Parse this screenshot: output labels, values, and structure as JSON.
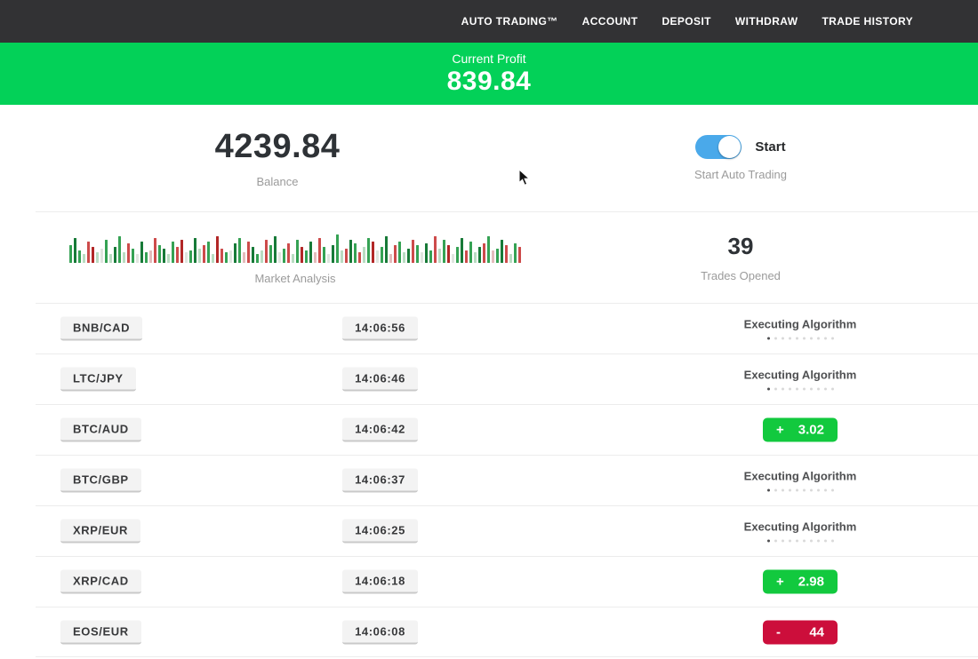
{
  "nav": {
    "items": [
      "AUTO TRADING™",
      "ACCOUNT",
      "DEPOSIT",
      "WITHDRAW",
      "TRADE HISTORY"
    ]
  },
  "profit_banner": {
    "label": "Current Profit",
    "value": "839.84"
  },
  "account": {
    "balance": "4239.84",
    "balance_label": "Balance",
    "toggle_label": "Start",
    "toggle_caption": "Start Auto Trading",
    "toggle_on": true
  },
  "market": {
    "label": "Market Analysis",
    "trades_opened": "39",
    "trades_opened_label": "Trades Opened",
    "bar_colors": {
      "g": "#35a254",
      "G": "#177a38",
      "r": "#cd4b4b",
      "R": "#b22727",
      "lg": "#b9dcc2",
      "lr": "#e3bcbc",
      "w": "#dfe5df"
    },
    "bars": [
      [
        "g",
        20
      ],
      [
        "G",
        28
      ],
      [
        "g",
        14
      ],
      [
        "lg",
        10
      ],
      [
        "r",
        24
      ],
      [
        "R",
        18
      ],
      [
        "lg",
        12
      ],
      [
        "w",
        16
      ],
      [
        "g",
        26
      ],
      [
        "lg",
        10
      ],
      [
        "G",
        18
      ],
      [
        "g",
        30
      ],
      [
        "lg",
        12
      ],
      [
        "r",
        22
      ],
      [
        "g",
        16
      ],
      [
        "w",
        10
      ],
      [
        "G",
        24
      ],
      [
        "g",
        12
      ],
      [
        "lr",
        14
      ],
      [
        "r",
        28
      ],
      [
        "g",
        20
      ],
      [
        "G",
        16
      ],
      [
        "lg",
        10
      ],
      [
        "g",
        24
      ],
      [
        "r",
        18
      ],
      [
        "R",
        26
      ],
      [
        "w",
        12
      ],
      [
        "g",
        14
      ],
      [
        "G",
        28
      ],
      [
        "lg",
        16
      ],
      [
        "r",
        20
      ],
      [
        "g",
        24
      ],
      [
        "lg",
        10
      ],
      [
        "R",
        30
      ],
      [
        "r",
        16
      ],
      [
        "g",
        12
      ],
      [
        "w",
        14
      ],
      [
        "G",
        22
      ],
      [
        "g",
        28
      ],
      [
        "lr",
        12
      ],
      [
        "r",
        24
      ],
      [
        "G",
        18
      ],
      [
        "g",
        10
      ],
      [
        "lg",
        14
      ],
      [
        "r",
        26
      ],
      [
        "g",
        20
      ],
      [
        "G",
        30
      ],
      [
        "w",
        12
      ],
      [
        "g",
        16
      ],
      [
        "r",
        22
      ],
      [
        "lg",
        10
      ],
      [
        "g",
        26
      ],
      [
        "R",
        18
      ],
      [
        "g",
        14
      ],
      [
        "G",
        24
      ],
      [
        "lr",
        12
      ],
      [
        "r",
        28
      ],
      [
        "g",
        18
      ],
      [
        "w",
        10
      ],
      [
        "G",
        20
      ],
      [
        "g",
        32
      ],
      [
        "lg",
        14
      ],
      [
        "r",
        16
      ],
      [
        "G",
        26
      ],
      [
        "g",
        22
      ],
      [
        "r",
        12
      ],
      [
        "lg",
        18
      ],
      [
        "g",
        28
      ],
      [
        "R",
        24
      ],
      [
        "w",
        14
      ],
      [
        "g",
        18
      ],
      [
        "G",
        30
      ],
      [
        "lr",
        10
      ],
      [
        "r",
        20
      ],
      [
        "g",
        24
      ],
      [
        "lg",
        12
      ],
      [
        "G",
        16
      ],
      [
        "r",
        26
      ],
      [
        "g",
        20
      ],
      [
        "w",
        12
      ],
      [
        "G",
        22
      ],
      [
        "g",
        14
      ],
      [
        "r",
        30
      ],
      [
        "lg",
        16
      ],
      [
        "g",
        26
      ],
      [
        "R",
        20
      ],
      [
        "w",
        10
      ],
      [
        "g",
        18
      ],
      [
        "G",
        28
      ],
      [
        "r",
        14
      ],
      [
        "g",
        24
      ],
      [
        "lg",
        12
      ],
      [
        "G",
        18
      ],
      [
        "r",
        22
      ],
      [
        "g",
        30
      ],
      [
        "lr",
        14
      ],
      [
        "g",
        16
      ],
      [
        "G",
        26
      ],
      [
        "r",
        20
      ],
      [
        "lg",
        10
      ],
      [
        "g",
        22
      ],
      [
        "r",
        18
      ]
    ]
  },
  "trades": {
    "executing_label": "Executing Algorithm",
    "executing_dots": 10,
    "rows": [
      {
        "pair": "BNB/CAD",
        "time": "14:06:56",
        "status": "executing"
      },
      {
        "pair": "LTC/JPY",
        "time": "14:06:46",
        "status": "executing"
      },
      {
        "pair": "BTC/AUD",
        "time": "14:06:42",
        "status": "win",
        "sign": "+",
        "value": "3.02"
      },
      {
        "pair": "BTC/GBP",
        "time": "14:06:37",
        "status": "executing"
      },
      {
        "pair": "XRP/EUR",
        "time": "14:06:25",
        "status": "executing"
      },
      {
        "pair": "XRP/CAD",
        "time": "14:06:18",
        "status": "win",
        "sign": "+",
        "value": "2.98"
      },
      {
        "pair": "EOS/EUR",
        "time": "14:06:08",
        "status": "loss",
        "sign": "-",
        "value": "44"
      }
    ]
  },
  "colors": {
    "nav_bg": "#323234",
    "banner_green": "#03d158",
    "toggle_blue": "#4aa9ea",
    "badge_green": "#12c93e",
    "badge_red": "#cc0e3b"
  }
}
